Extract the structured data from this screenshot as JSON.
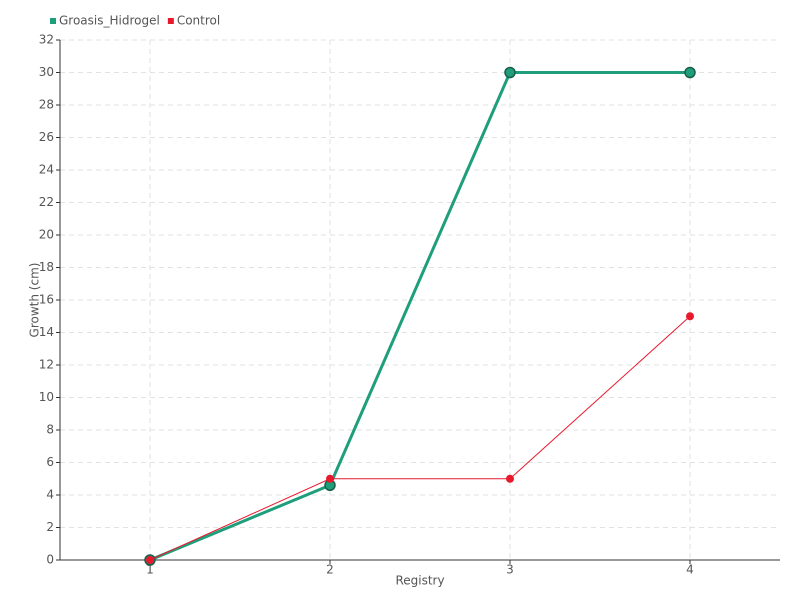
{
  "chart_data": {
    "type": "line",
    "x_label": "Registry",
    "y_label": "Growth (cm)",
    "categories": [
      "1",
      "2",
      "3",
      "4"
    ],
    "series": [
      {
        "name": "Groasis_Hidrogel",
        "color": "#1f9e7c",
        "values": [
          0,
          4.6,
          30,
          30
        ]
      },
      {
        "name": "Control",
        "color": "#e8192c",
        "values": [
          0,
          5,
          5,
          15
        ]
      }
    ],
    "ylim": [
      0,
      32
    ],
    "yticks": [
      0,
      2,
      4,
      6,
      8,
      10,
      12,
      14,
      16,
      18,
      20,
      22,
      24,
      26,
      28,
      30,
      32
    ],
    "grid": true,
    "legend": "top-left"
  }
}
